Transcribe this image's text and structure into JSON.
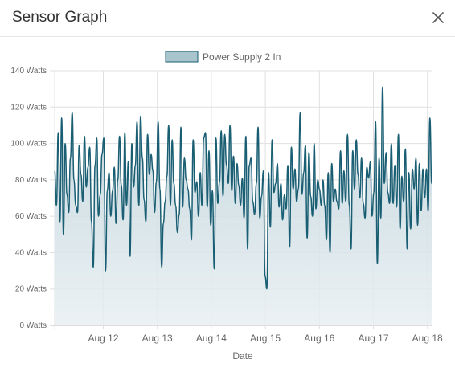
{
  "dialog": {
    "title": "Sensor Graph"
  },
  "colors": {
    "line": "#1a5e73",
    "fill_top": "#b9cfd7",
    "fill_bottom": "#e8eff2",
    "legend_swatch": "#a8c4cd",
    "grid": "#e0e0e0",
    "text": "#666666"
  },
  "chart_data": {
    "type": "area",
    "legend": [
      "Power Supply 2 In"
    ],
    "legend_position": "top-center",
    "xlabel": "Date",
    "ylabel": "",
    "grid": true,
    "x_ticks": [
      "Aug 12",
      "Aug 13",
      "Aug 14",
      "Aug 15",
      "Aug 16",
      "Aug 17",
      "Aug 18"
    ],
    "y_ticks": [
      "0 Watts",
      "20 Watts",
      "40 Watts",
      "60 Watts",
      "80 Watts",
      "100 Watts",
      "120 Watts",
      "140 Watts"
    ],
    "ylim": [
      0,
      140
    ],
    "xlim": [
      "Aug 11 06:00",
      "Aug 18 03:00"
    ],
    "series": [
      {
        "name": "Power Supply 2 In",
        "values": [
          85,
          66,
          106,
          57,
          114,
          50,
          100,
          72,
          62,
          92,
          117,
          80,
          66,
          62,
          99,
          83,
          68,
          104,
          76,
          87,
          98,
          57,
          32,
          88,
          103,
          60,
          72,
          94,
          103,
          30,
          74,
          84,
          60,
          74,
          87,
          56,
          80,
          104,
          77,
          58,
          106,
          66,
          90,
          38,
          100,
          76,
          88,
          112,
          66,
          115,
          92,
          69,
          57,
          105,
          83,
          94,
          85,
          62,
          79,
          112,
          75,
          32,
          56,
          68,
          82,
          110,
          66,
          102,
          78,
          66,
          51,
          61,
          109,
          65,
          92,
          80,
          75,
          64,
          47,
          102,
          73,
          79,
          60,
          84,
          66,
          103,
          106,
          65,
          96,
          55,
          74,
          31,
          103,
          67,
          79,
          107,
          71,
          105,
          88,
          78,
          110,
          74,
          93,
          67,
          89,
          77,
          66,
          81,
          59,
          104,
          42,
          88,
          92,
          68,
          61,
          78,
          109,
          59,
          71,
          85,
          27,
          20,
          84,
          54,
          102,
          73,
          78,
          89,
          65,
          78,
          58,
          72,
          64,
          88,
          43,
          98,
          75,
          86,
          68,
          75,
          117,
          72,
          84,
          99,
          48,
          95,
          71,
          60,
          100,
          64,
          80,
          75,
          66,
          80,
          66,
          47,
          84,
          40,
          89,
          68,
          75,
          68,
          64,
          96,
          67,
          85,
          68,
          105,
          66,
          42,
          96,
          75,
          102,
          83,
          70,
          92,
          67,
          59,
          87,
          81,
          90,
          60,
          73,
          112,
          34,
          92,
          59,
          131,
          78,
          95,
          73,
          67,
          100,
          67,
          88,
          65,
          105,
          53,
          82,
          68,
          97,
          42,
          84,
          53,
          86,
          75,
          92,
          55,
          89,
          63,
          86,
          70,
          86,
          63,
          114,
          78
        ]
      }
    ]
  }
}
